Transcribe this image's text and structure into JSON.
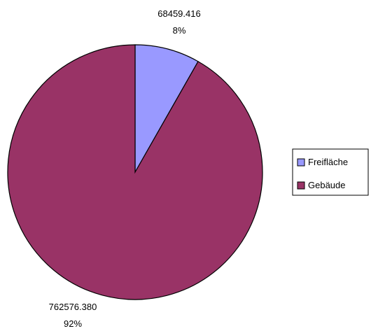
{
  "chart_data": {
    "type": "pie",
    "categories": [
      "Freifläche",
      "Gebäude"
    ],
    "values": [
      68459416,
      762576380
    ],
    "value_labels": [
      "68459.416",
      "762576.380"
    ],
    "percent_labels": [
      "8%",
      "92%"
    ],
    "colors": [
      "#9999ff",
      "#993366"
    ],
    "start_angle_deg": 0,
    "direction": "clockwise",
    "legend_position": "right",
    "title": ""
  }
}
